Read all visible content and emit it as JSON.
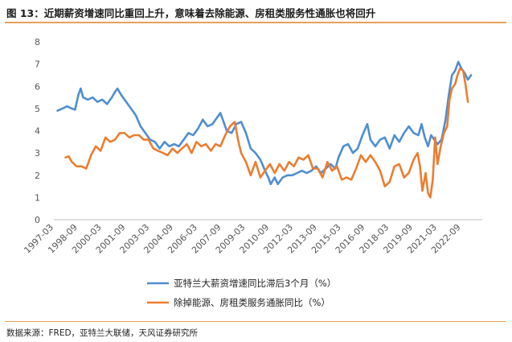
{
  "figure": {
    "title": "图 13：近期薪资增速同比重回上升，意味着去除能源、房租类服务性通胀也将回升",
    "source": "数据来源：FRED，亚特兰大联储，天风证券研究所"
  },
  "colors": {
    "series_blue": "#4f8ed0",
    "series_orange": "#ec7d31",
    "accent_rule": "#e8a15a"
  },
  "chart_data": {
    "type": "line",
    "title": "",
    "xlabel": "",
    "ylabel": "",
    "ylim": [
      0,
      8
    ],
    "yticks": [
      0,
      1,
      2,
      3,
      4,
      5,
      6,
      7,
      8
    ],
    "xlim": [
      1997.17,
      2024.0
    ],
    "xticks": [
      {
        "x": 1997.17,
        "label": "1997-03"
      },
      {
        "x": 1998.67,
        "label": "1998-09"
      },
      {
        "x": 2000.17,
        "label": "2000-03"
      },
      {
        "x": 2001.67,
        "label": "2001-09"
      },
      {
        "x": 2003.17,
        "label": "2003-03"
      },
      {
        "x": 2004.67,
        "label": "2004-09"
      },
      {
        "x": 2006.17,
        "label": "2006-03"
      },
      {
        "x": 2007.67,
        "label": "2007-09"
      },
      {
        "x": 2009.17,
        "label": "2009-03"
      },
      {
        "x": 2010.67,
        "label": "2010-09"
      },
      {
        "x": 2012.17,
        "label": "2012-03"
      },
      {
        "x": 2013.67,
        "label": "2013-09"
      },
      {
        "x": 2015.17,
        "label": "2015-03"
      },
      {
        "x": 2016.67,
        "label": "2016-09"
      },
      {
        "x": 2018.17,
        "label": "2018-03"
      },
      {
        "x": 2019.67,
        "label": "2019-09"
      },
      {
        "x": 2021.17,
        "label": "2021-03"
      },
      {
        "x": 2022.67,
        "label": "2022-09"
      }
    ],
    "grid": false,
    "legend_position": "bottom",
    "series": [
      {
        "name": "亚特兰大薪资增速同比滞后3个月（%）",
        "color": "#4f8ed0",
        "points": [
          [
            1997.4,
            4.9
          ],
          [
            1997.7,
            5.0
          ],
          [
            1998.0,
            5.1
          ],
          [
            1998.3,
            5.0
          ],
          [
            1998.5,
            4.95
          ],
          [
            1998.7,
            5.6
          ],
          [
            1998.85,
            5.9
          ],
          [
            1999.0,
            5.5
          ],
          [
            1999.3,
            5.4
          ],
          [
            1999.6,
            5.5
          ],
          [
            1999.9,
            5.3
          ],
          [
            2000.2,
            5.4
          ],
          [
            2000.5,
            5.2
          ],
          [
            2000.8,
            5.5
          ],
          [
            2001.0,
            5.75
          ],
          [
            2001.15,
            5.9
          ],
          [
            2001.4,
            5.6
          ],
          [
            2001.7,
            5.3
          ],
          [
            2002.0,
            5.0
          ],
          [
            2002.3,
            4.7
          ],
          [
            2002.6,
            4.2
          ],
          [
            2002.9,
            3.9
          ],
          [
            2003.2,
            3.6
          ],
          [
            2003.5,
            3.5
          ],
          [
            2003.8,
            3.2
          ],
          [
            2004.1,
            3.5
          ],
          [
            2004.4,
            3.3
          ],
          [
            2004.7,
            3.4
          ],
          [
            2005.0,
            3.3
          ],
          [
            2005.3,
            3.6
          ],
          [
            2005.6,
            3.9
          ],
          [
            2005.9,
            3.8
          ],
          [
            2006.2,
            4.1
          ],
          [
            2006.5,
            4.5
          ],
          [
            2006.8,
            4.2
          ],
          [
            2007.1,
            4.3
          ],
          [
            2007.4,
            4.6
          ],
          [
            2007.6,
            4.8
          ],
          [
            2007.8,
            4.4
          ],
          [
            2008.0,
            4.0
          ],
          [
            2008.3,
            3.9
          ],
          [
            2008.6,
            4.3
          ],
          [
            2008.9,
            4.4
          ],
          [
            2009.2,
            3.9
          ],
          [
            2009.5,
            3.2
          ],
          [
            2009.8,
            3.0
          ],
          [
            2010.1,
            2.7
          ],
          [
            2010.4,
            2.2
          ],
          [
            2010.6,
            1.9
          ],
          [
            2010.75,
            1.6
          ],
          [
            2011.0,
            1.9
          ],
          [
            2011.2,
            1.6
          ],
          [
            2011.5,
            1.9
          ],
          [
            2011.8,
            2.0
          ],
          [
            2012.1,
            2.0
          ],
          [
            2012.4,
            2.1
          ],
          [
            2012.7,
            2.2
          ],
          [
            2013.0,
            2.1
          ],
          [
            2013.3,
            2.2
          ],
          [
            2013.6,
            2.4
          ],
          [
            2013.9,
            2.1
          ],
          [
            2014.2,
            2.3
          ],
          [
            2014.5,
            2.5
          ],
          [
            2014.8,
            2.3
          ],
          [
            2015.0,
            2.8
          ],
          [
            2015.3,
            3.3
          ],
          [
            2015.6,
            3.4
          ],
          [
            2015.9,
            3.0
          ],
          [
            2016.2,
            3.2
          ],
          [
            2016.5,
            3.8
          ],
          [
            2016.8,
            4.3
          ],
          [
            2017.0,
            3.6
          ],
          [
            2017.3,
            3.3
          ],
          [
            2017.6,
            3.6
          ],
          [
            2017.9,
            3.7
          ],
          [
            2018.2,
            3.2
          ],
          [
            2018.5,
            3.8
          ],
          [
            2018.8,
            3.5
          ],
          [
            2019.1,
            3.9
          ],
          [
            2019.4,
            4.2
          ],
          [
            2019.7,
            3.9
          ],
          [
            2020.0,
            3.8
          ],
          [
            2020.2,
            4.3
          ],
          [
            2020.4,
            3.7
          ],
          [
            2020.6,
            3.3
          ],
          [
            2020.8,
            3.8
          ],
          [
            2021.0,
            3.6
          ],
          [
            2021.2,
            3.4
          ],
          [
            2021.45,
            3.6
          ],
          [
            2021.7,
            4.5
          ],
          [
            2021.9,
            5.6
          ],
          [
            2022.1,
            6.5
          ],
          [
            2022.3,
            6.7
          ],
          [
            2022.5,
            7.1
          ],
          [
            2022.7,
            6.8
          ],
          [
            2022.9,
            6.6
          ],
          [
            2023.1,
            6.3
          ],
          [
            2023.3,
            6.5
          ]
        ]
      },
      {
        "name": "除掉能源、房租类服务通胀同比（%）",
        "color": "#ec7d31",
        "points": [
          [
            1997.9,
            2.8
          ],
          [
            1998.1,
            2.85
          ],
          [
            1998.3,
            2.6
          ],
          [
            1998.6,
            2.4
          ],
          [
            1998.9,
            2.4
          ],
          [
            1999.2,
            2.3
          ],
          [
            1999.5,
            2.9
          ],
          [
            1999.8,
            3.3
          ],
          [
            2000.1,
            3.1
          ],
          [
            2000.4,
            3.7
          ],
          [
            2000.7,
            3.5
          ],
          [
            2001.0,
            3.6
          ],
          [
            2001.3,
            3.9
          ],
          [
            2001.6,
            3.9
          ],
          [
            2001.9,
            3.7
          ],
          [
            2002.2,
            3.8
          ],
          [
            2002.5,
            3.8
          ],
          [
            2002.8,
            3.6
          ],
          [
            2003.1,
            3.6
          ],
          [
            2003.4,
            3.2
          ],
          [
            2003.7,
            3.1
          ],
          [
            2004.0,
            3.0
          ],
          [
            2004.3,
            2.9
          ],
          [
            2004.6,
            3.2
          ],
          [
            2004.9,
            3.0
          ],
          [
            2005.2,
            3.2
          ],
          [
            2005.5,
            3.4
          ],
          [
            2005.8,
            3.0
          ],
          [
            2006.1,
            3.5
          ],
          [
            2006.4,
            3.3
          ],
          [
            2006.7,
            3.4
          ],
          [
            2007.0,
            3.1
          ],
          [
            2007.3,
            3.4
          ],
          [
            2007.6,
            3.3
          ],
          [
            2007.9,
            3.8
          ],
          [
            2008.2,
            4.2
          ],
          [
            2008.5,
            4.4
          ],
          [
            2008.7,
            3.6
          ],
          [
            2008.9,
            3.0
          ],
          [
            2009.2,
            2.6
          ],
          [
            2009.5,
            2.0
          ],
          [
            2009.8,
            2.6
          ],
          [
            2010.1,
            1.9
          ],
          [
            2010.4,
            2.2
          ],
          [
            2010.7,
            2.5
          ],
          [
            2011.0,
            2.1
          ],
          [
            2011.3,
            2.5
          ],
          [
            2011.6,
            2.2
          ],
          [
            2011.9,
            2.6
          ],
          [
            2012.2,
            2.4
          ],
          [
            2012.5,
            2.8
          ],
          [
            2012.8,
            2.7
          ],
          [
            2013.1,
            2.9
          ],
          [
            2013.4,
            2.3
          ],
          [
            2013.7,
            2.3
          ],
          [
            2014.0,
            1.9
          ],
          [
            2014.3,
            2.6
          ],
          [
            2014.6,
            2.2
          ],
          [
            2014.9,
            2.4
          ],
          [
            2015.2,
            1.8
          ],
          [
            2015.5,
            1.9
          ],
          [
            2015.8,
            1.8
          ],
          [
            2016.1,
            2.3
          ],
          [
            2016.4,
            2.9
          ],
          [
            2016.7,
            2.6
          ],
          [
            2017.0,
            2.9
          ],
          [
            2017.3,
            2.6
          ],
          [
            2017.6,
            2.2
          ],
          [
            2017.9,
            1.5
          ],
          [
            2018.2,
            1.7
          ],
          [
            2018.5,
            2.4
          ],
          [
            2018.8,
            2.5
          ],
          [
            2019.1,
            1.9
          ],
          [
            2019.4,
            2.1
          ],
          [
            2019.7,
            2.7
          ],
          [
            2019.95,
            3.0
          ],
          [
            2020.1,
            2.4
          ],
          [
            2020.25,
            1.3
          ],
          [
            2020.45,
            2.1
          ],
          [
            2020.6,
            1.2
          ],
          [
            2020.75,
            1.0
          ],
          [
            2020.9,
            1.8
          ],
          [
            2021.05,
            3.7
          ],
          [
            2021.2,
            2.5
          ],
          [
            2021.4,
            3.3
          ],
          [
            2021.6,
            3.9
          ],
          [
            2021.8,
            4.2
          ],
          [
            2021.95,
            5.4
          ],
          [
            2022.1,
            5.9
          ],
          [
            2022.3,
            6.1
          ],
          [
            2022.45,
            6.5
          ],
          [
            2022.6,
            6.8
          ],
          [
            2022.8,
            6.7
          ],
          [
            2022.95,
            6.1
          ],
          [
            2023.1,
            5.3
          ]
        ]
      }
    ]
  }
}
